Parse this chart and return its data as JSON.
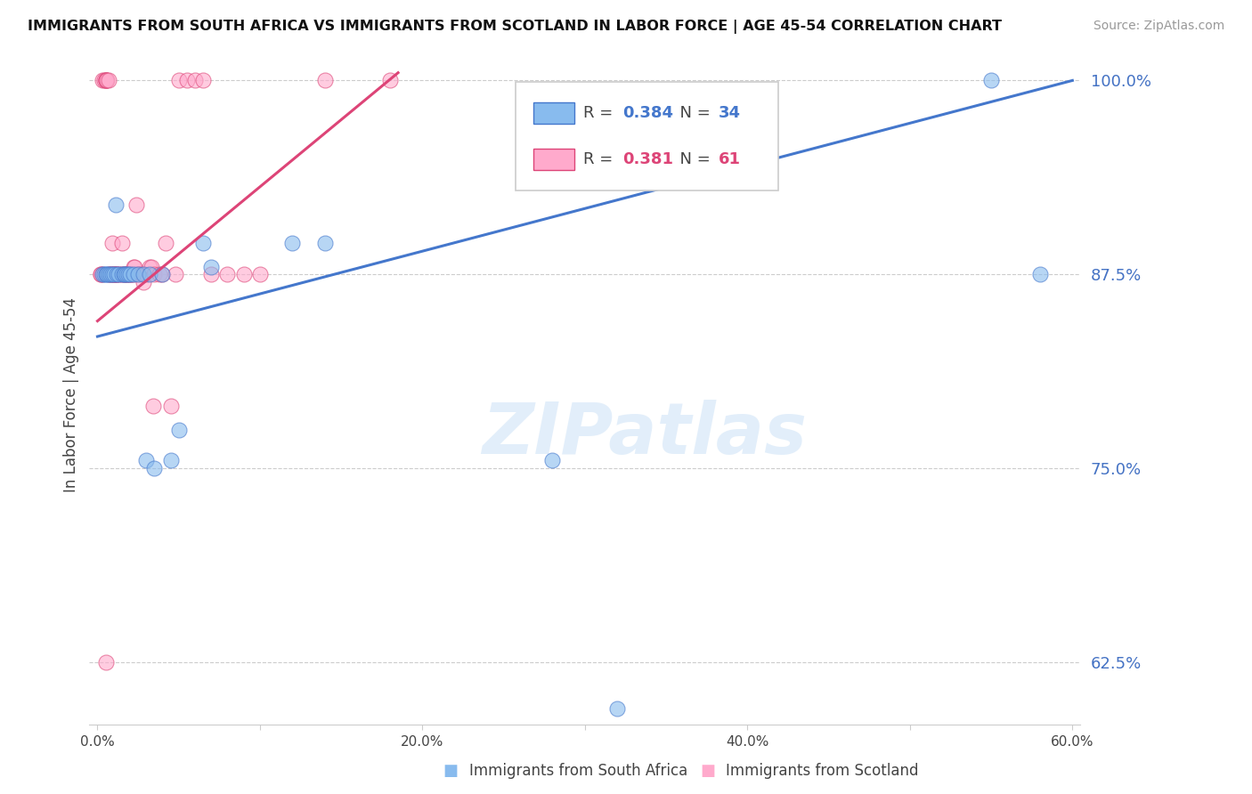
{
  "title": "IMMIGRANTS FROM SOUTH AFRICA VS IMMIGRANTS FROM SCOTLAND IN LABOR FORCE | AGE 45-54 CORRELATION CHART",
  "source": "Source: ZipAtlas.com",
  "ylabel": "In Labor Force | Age 45-54",
  "R_blue": 0.384,
  "N_blue": 34,
  "R_pink": 0.381,
  "N_pink": 61,
  "legend_label_blue": "Immigrants from South Africa",
  "legend_label_pink": "Immigrants from Scotland",
  "watermark": "ZIPatlas",
  "xlim": [
    -0.005,
    0.605
  ],
  "ylim": [
    0.585,
    1.01
  ],
  "xticks": [
    0.0,
    0.1,
    0.2,
    0.3,
    0.4,
    0.5,
    0.6
  ],
  "yticks_right": [
    1.0,
    0.875,
    0.75,
    0.625
  ],
  "ytick_labels_right": [
    "100.0%",
    "87.5%",
    "75.0%",
    "62.5%"
  ],
  "xtick_labels": [
    "0.0%",
    "",
    "20.0%",
    "",
    "40.0%",
    "",
    "60.0%"
  ],
  "grid_color": "#cccccc",
  "blue_color": "#88BBEE",
  "pink_color": "#FFAACC",
  "trend_blue": "#4477CC",
  "trend_pink": "#DD4477",
  "blue_scatter_x": [
    0.003,
    0.004,
    0.005,
    0.006,
    0.007,
    0.008,
    0.009,
    0.01,
    0.011,
    0.012,
    0.013,
    0.015,
    0.016,
    0.017,
    0.018,
    0.019,
    0.02,
    0.022,
    0.025,
    0.028,
    0.03,
    0.032,
    0.035,
    0.04,
    0.045,
    0.05,
    0.065,
    0.07,
    0.12,
    0.14,
    0.28,
    0.32,
    0.55,
    0.58
  ],
  "blue_scatter_y": [
    0.875,
    0.875,
    0.875,
    0.875,
    0.875,
    0.875,
    0.875,
    0.875,
    0.92,
    0.875,
    0.875,
    0.875,
    0.875,
    0.875,
    0.875,
    0.875,
    0.875,
    0.875,
    0.875,
    0.875,
    0.755,
    0.875,
    0.75,
    0.875,
    0.755,
    0.775,
    0.895,
    0.88,
    0.895,
    0.895,
    0.755,
    0.595,
    1.0,
    0.875
  ],
  "pink_scatter_x": [
    0.002,
    0.002,
    0.003,
    0.003,
    0.004,
    0.005,
    0.005,
    0.005,
    0.006,
    0.007,
    0.007,
    0.008,
    0.008,
    0.009,
    0.009,
    0.01,
    0.01,
    0.01,
    0.011,
    0.012,
    0.012,
    0.013,
    0.014,
    0.015,
    0.015,
    0.016,
    0.017,
    0.018,
    0.018,
    0.019,
    0.02,
    0.02,
    0.021,
    0.022,
    0.022,
    0.023,
    0.024,
    0.025,
    0.027,
    0.028,
    0.03,
    0.032,
    0.033,
    0.034,
    0.035,
    0.038,
    0.04,
    0.042,
    0.045,
    0.048,
    0.05,
    0.055,
    0.06,
    0.065,
    0.07,
    0.08,
    0.09,
    0.1,
    0.14,
    0.18,
    0.005
  ],
  "pink_scatter_y": [
    0.875,
    0.875,
    1.0,
    0.875,
    1.0,
    1.0,
    1.0,
    1.0,
    1.0,
    1.0,
    0.875,
    0.875,
    0.875,
    0.875,
    0.895,
    0.875,
    0.875,
    0.875,
    0.875,
    0.875,
    0.875,
    0.875,
    0.875,
    0.875,
    0.895,
    0.875,
    0.875,
    0.875,
    0.875,
    0.875,
    0.875,
    0.875,
    0.875,
    0.875,
    0.88,
    0.88,
    0.92,
    0.875,
    0.875,
    0.87,
    0.875,
    0.88,
    0.88,
    0.79,
    0.875,
    0.875,
    0.875,
    0.895,
    0.79,
    0.875,
    1.0,
    1.0,
    1.0,
    1.0,
    0.875,
    0.875,
    0.875,
    0.875,
    1.0,
    1.0,
    0.625
  ],
  "blue_trend_x0": 0.0,
  "blue_trend_x1": 0.6,
  "blue_trend_y0": 0.835,
  "blue_trend_y1": 1.0,
  "pink_trend_x0": 0.0,
  "pink_trend_x1": 0.185,
  "pink_trend_y0": 0.845,
  "pink_trend_y1": 1.005
}
